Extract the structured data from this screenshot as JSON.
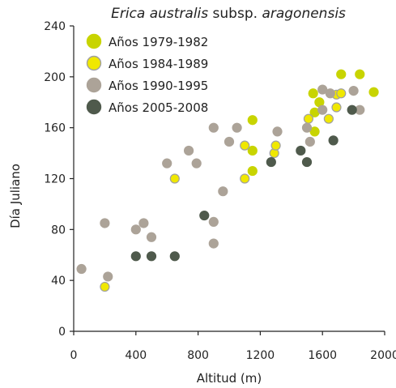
{
  "chart_data": {
    "type": "scatter",
    "title_parts": [
      {
        "text": "Erica australis",
        "italic": true
      },
      {
        "text": " subsp. ",
        "italic": false
      },
      {
        "text": "aragonensis",
        "italic": true
      }
    ],
    "xlabel": "Altitud (m)",
    "ylabel": "Día Juliano",
    "xlim": [
      0,
      2000
    ],
    "ylim": [
      0,
      240
    ],
    "xticks": [
      "0",
      "400",
      "800",
      "1200",
      "1600",
      "2000"
    ],
    "xtick_values": [
      0,
      400,
      800,
      1200,
      1600,
      2000
    ],
    "yticks": [
      "0",
      "40",
      "80",
      "120",
      "160",
      "200",
      "240"
    ],
    "ytick_values": [
      0,
      40,
      80,
      120,
      160,
      200,
      240
    ],
    "grid": false,
    "legend_position": "top-left",
    "series": [
      {
        "name": "Años 1979-1982",
        "color": "#c8d400",
        "edge": "#c8d400",
        "points": [
          [
            1150,
            166
          ],
          [
            1150,
            142
          ],
          [
            1150,
            126
          ],
          [
            1540,
            187
          ],
          [
            1550,
            157
          ],
          [
            1550,
            172
          ],
          [
            1580,
            180
          ],
          [
            1720,
            202
          ],
          [
            1840,
            202
          ],
          [
            1930,
            188
          ]
        ]
      },
      {
        "name": "Años 1984-1989",
        "color": "#f0e800",
        "edge": "#a0a0a0",
        "points": [
          [
            200,
            35
          ],
          [
            650,
            120
          ],
          [
            1100,
            146
          ],
          [
            1100,
            120
          ],
          [
            1290,
            140
          ],
          [
            1300,
            146
          ],
          [
            1510,
            167
          ],
          [
            1640,
            167
          ],
          [
            1690,
            176
          ],
          [
            1690,
            186
          ],
          [
            1720,
            187
          ]
        ]
      },
      {
        "name": "Años 1990-1995",
        "color": "#aca398",
        "edge": "#aca398",
        "points": [
          [
            50,
            49
          ],
          [
            200,
            85
          ],
          [
            220,
            43
          ],
          [
            400,
            80
          ],
          [
            450,
            85
          ],
          [
            500,
            74
          ],
          [
            600,
            132
          ],
          [
            740,
            142
          ],
          [
            790,
            132
          ],
          [
            900,
            160
          ],
          [
            900,
            86
          ],
          [
            900,
            69
          ],
          [
            960,
            110
          ],
          [
            1000,
            149
          ],
          [
            1050,
            160
          ],
          [
            1310,
            157
          ],
          [
            1500,
            160
          ],
          [
            1520,
            149
          ],
          [
            1600,
            190
          ],
          [
            1600,
            174
          ],
          [
            1650,
            187
          ],
          [
            1800,
            189
          ],
          [
            1840,
            174
          ]
        ]
      },
      {
        "name": "Años 2005-2008",
        "color": "#4f5a4c",
        "edge": "#4f5a4c",
        "points": [
          [
            400,
            59
          ],
          [
            500,
            59
          ],
          [
            650,
            59
          ],
          [
            840,
            91
          ],
          [
            1270,
            133
          ],
          [
            1460,
            142
          ],
          [
            1500,
            133
          ],
          [
            1670,
            150
          ],
          [
            1790,
            174
          ]
        ]
      }
    ]
  }
}
